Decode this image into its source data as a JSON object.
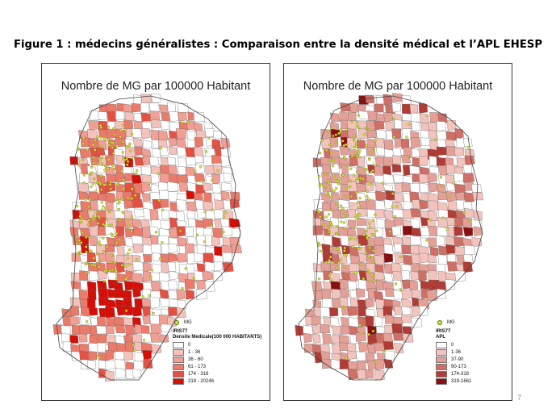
{
  "slide": {
    "title": "Figure 1 : médecins généralistes : Comparaison entre la densité médical et l’APL EHESP",
    "page_number": "7"
  },
  "maps": [
    {
      "title": "Nombre de MG par 100000 Habitant",
      "legend": {
        "point_label": "MG",
        "layer": "IRIS77",
        "field": "Densite Medicale(100 000 HABITANTS)",
        "classes": [
          {
            "label": "0",
            "color": "#ffffff"
          },
          {
            "label": "1 - 36",
            "color": "#f4c2bb"
          },
          {
            "label": "36 - 60",
            "color": "#ef9f93"
          },
          {
            "label": "61 - 173",
            "color": "#ea7a6a"
          },
          {
            "label": "174 - 318",
            "color": "#e45142"
          },
          {
            "label": "319 - 20246",
            "color": "#d40f08"
          }
        ]
      }
    },
    {
      "title": "Nombre de MG par 100000 Habitant",
      "legend": {
        "point_label": "MG",
        "layer": "IRIS77",
        "field": "APL",
        "classes": [
          {
            "label": "0",
            "color": "#ffffff"
          },
          {
            "label": "1-36",
            "color": "#f2c4bd"
          },
          {
            "label": "37-90",
            "color": "#e4a097"
          },
          {
            "label": "90-173",
            "color": "#cf6f66"
          },
          {
            "label": "174-318",
            "color": "#b03c35"
          },
          {
            "label": "319-1661",
            "color": "#8a0f10"
          }
        ]
      }
    }
  ],
  "colors": {
    "mg_point": "#d7e430",
    "border": "#555555"
  }
}
